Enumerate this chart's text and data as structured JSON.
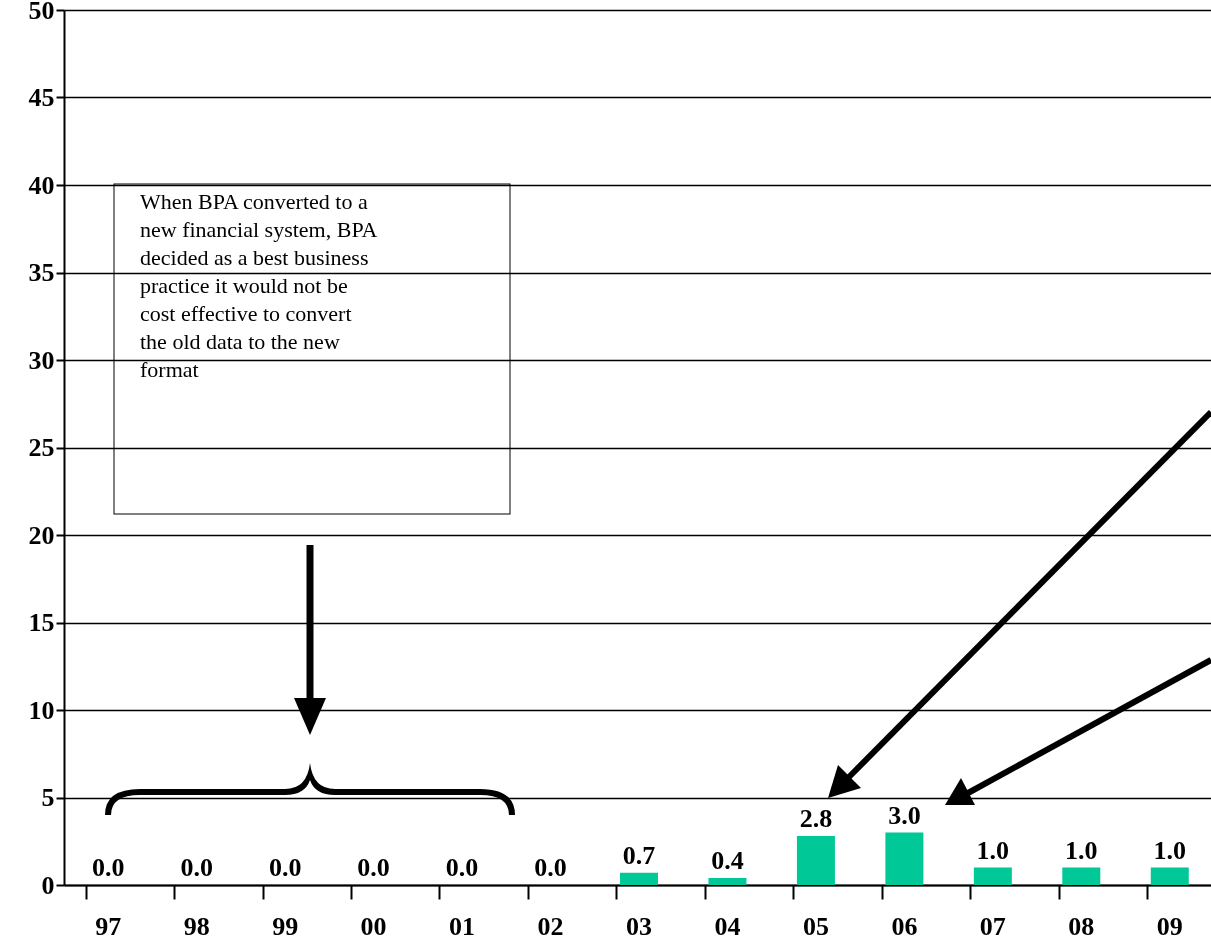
{
  "chart_data": {
    "type": "bar",
    "categories": [
      "97",
      "98",
      "99",
      "00",
      "01",
      "02",
      "03",
      "04",
      "05",
      "06",
      "07",
      "08",
      "09"
    ],
    "values": [
      0,
      0,
      0,
      0,
      0,
      0,
      0.7,
      0.4,
      2.8,
      3.0,
      1.0,
      1.0,
      1.0
    ],
    "value_labels": [
      "0.0",
      "0.0",
      "0.0",
      "0.0",
      "0.0",
      "0.0",
      "0.7",
      "0.4",
      "2.8",
      "3.0",
      "1.0",
      "1.0",
      "1.0"
    ],
    "color": "#00c896",
    "ylim": [
      0,
      50
    ],
    "yticks": [
      0,
      5,
      10,
      15,
      20,
      25,
      30,
      35,
      40,
      45,
      50
    ],
    "grid": "y",
    "annotations": [
      "When BPA converted to a new financial system, BPA decided as a best business practice it would not be cost effective to convert the old data to the new format"
    ]
  }
}
